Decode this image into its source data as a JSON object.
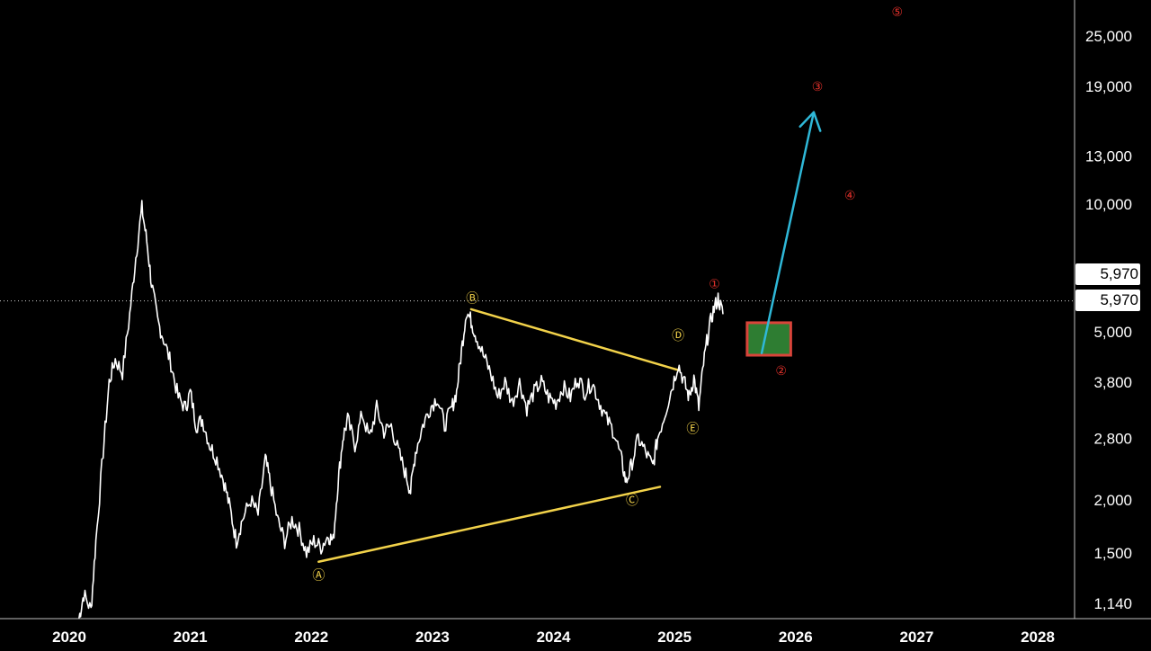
{
  "chart_data": {
    "type": "line",
    "scale": "log",
    "x_ticks": [
      "2020",
      "2021",
      "2022",
      "2023",
      "2024",
      "2025",
      "2026",
      "2027",
      "2028"
    ],
    "y_ticks": [
      "1,140",
      "1,500",
      "2,000",
      "2,800",
      "3,800",
      "5,000",
      "5,970",
      "10,000",
      "13,000",
      "19,000",
      "25,000"
    ],
    "y_tick_values": [
      1140,
      1500,
      2000,
      2800,
      3800,
      5000,
      10000,
      13000,
      19000,
      25000
    ],
    "ylim": [
      1000,
      30000
    ],
    "xlim": [
      2019.85,
      2028.4
    ],
    "current_price_labels": [
      "5,970",
      "5,970"
    ],
    "current_price": 5970,
    "series": [
      {
        "color": "#ffffff",
        "points": [
          [
            2020.08,
            1050
          ],
          [
            2020.12,
            1200
          ],
          [
            2020.18,
            1100
          ],
          [
            2020.22,
            1600
          ],
          [
            2020.28,
            2600
          ],
          [
            2020.33,
            3800
          ],
          [
            2020.38,
            4300
          ],
          [
            2020.44,
            4000
          ],
          [
            2020.5,
            5500
          ],
          [
            2020.55,
            7500
          ],
          [
            2020.6,
            9800
          ],
          [
            2020.64,
            8200
          ],
          [
            2020.68,
            6500
          ],
          [
            2020.73,
            5300
          ],
          [
            2020.78,
            4800
          ],
          [
            2020.84,
            4200
          ],
          [
            2020.9,
            3500
          ],
          [
            2020.96,
            3300
          ],
          [
            2021.0,
            3600
          ],
          [
            2021.05,
            3000
          ],
          [
            2021.1,
            3100
          ],
          [
            2021.16,
            2700
          ],
          [
            2021.22,
            2500
          ],
          [
            2021.28,
            2200
          ],
          [
            2021.33,
            1900
          ],
          [
            2021.38,
            1600
          ],
          [
            2021.43,
            1800
          ],
          [
            2021.5,
            2000
          ],
          [
            2021.56,
            1850
          ],
          [
            2021.62,
            2500
          ],
          [
            2021.66,
            2200
          ],
          [
            2021.72,
            1800
          ],
          [
            2021.78,
            1600
          ],
          [
            2021.84,
            1800
          ],
          [
            2021.9,
            1700
          ],
          [
            2021.96,
            1500
          ],
          [
            2022.02,
            1600
          ],
          [
            2022.08,
            1550
          ],
          [
            2022.14,
            1650
          ],
          [
            2022.18,
            1600
          ],
          [
            2022.22,
            2200
          ],
          [
            2022.26,
            2800
          ],
          [
            2022.3,
            3100
          ],
          [
            2022.36,
            2700
          ],
          [
            2022.42,
            3200
          ],
          [
            2022.48,
            2800
          ],
          [
            2022.54,
            3300
          ],
          [
            2022.6,
            2900
          ],
          [
            2022.66,
            3000
          ],
          [
            2022.72,
            2600
          ],
          [
            2022.78,
            2300
          ],
          [
            2022.82,
            2100
          ],
          [
            2022.86,
            2600
          ],
          [
            2022.92,
            3000
          ],
          [
            2022.98,
            3300
          ],
          [
            2023.04,
            3500
          ],
          [
            2023.1,
            3000
          ],
          [
            2023.16,
            3300
          ],
          [
            2023.2,
            3600
          ],
          [
            2023.24,
            4500
          ],
          [
            2023.28,
            5600
          ],
          [
            2023.32,
            5300
          ],
          [
            2023.36,
            4900
          ],
          [
            2023.42,
            4400
          ],
          [
            2023.48,
            4000
          ],
          [
            2023.54,
            3500
          ],
          [
            2023.6,
            3800
          ],
          [
            2023.66,
            3400
          ],
          [
            2023.72,
            3800
          ],
          [
            2023.78,
            3300
          ],
          [
            2023.84,
            3600
          ],
          [
            2023.9,
            3800
          ],
          [
            2023.96,
            3500
          ],
          [
            2024.02,
            3400
          ],
          [
            2024.08,
            3700
          ],
          [
            2024.14,
            3500
          ],
          [
            2024.2,
            3900
          ],
          [
            2024.26,
            3600
          ],
          [
            2024.32,
            3800
          ],
          [
            2024.38,
            3400
          ],
          [
            2024.44,
            3100
          ],
          [
            2024.5,
            2900
          ],
          [
            2024.56,
            2500
          ],
          [
            2024.6,
            2200
          ],
          [
            2024.64,
            2400
          ],
          [
            2024.7,
            2800
          ],
          [
            2024.76,
            2600
          ],
          [
            2024.82,
            2400
          ],
          [
            2024.86,
            2800
          ],
          [
            2024.92,
            3200
          ],
          [
            2024.98,
            3700
          ],
          [
            2025.03,
            4200
          ],
          [
            2025.08,
            3800
          ],
          [
            2025.12,
            3500
          ],
          [
            2025.16,
            3900
          ],
          [
            2025.2,
            3300
          ],
          [
            2025.24,
            4200
          ],
          [
            2025.28,
            5000
          ],
          [
            2025.32,
            5600
          ],
          [
            2025.36,
            6000
          ],
          [
            2025.4,
            5500
          ]
        ]
      }
    ],
    "trendlines": [
      {
        "color": "#f2d24a",
        "from": [
          2022.06,
          1430
        ],
        "to": [
          2024.88,
          2150
        ]
      },
      {
        "color": "#f2d24a",
        "from": [
          2023.32,
          5650
        ],
        "to": [
          2025.04,
          4050
        ]
      }
    ],
    "projection_arrow": {
      "color": "#2fb8d8",
      "from": [
        2025.72,
        4450
      ],
      "to": [
        2026.15,
        16500
      ]
    },
    "zone": {
      "fill": "#2e7d32",
      "border": "#d9443a",
      "x_range": [
        2025.6,
        2025.96
      ],
      "y_range": [
        4400,
        5250
      ]
    },
    "yellow_labels": [
      {
        "text": "Ⓐ",
        "x": 2022.06,
        "y": 1330
      },
      {
        "text": "Ⓑ",
        "x": 2023.33,
        "y": 6000
      },
      {
        "text": "Ⓒ",
        "x": 2024.65,
        "y": 2000
      },
      {
        "text": "Ⓓ",
        "x": 2025.03,
        "y": 4900
      },
      {
        "text": "Ⓔ",
        "x": 2025.15,
        "y": 2950
      }
    ],
    "red_labels": [
      {
        "text": "①",
        "x": 2025.33,
        "y": 6500
      },
      {
        "text": "②",
        "x": 2025.88,
        "y": 4050
      },
      {
        "text": "③",
        "x": 2026.18,
        "y": 19000
      },
      {
        "text": "④",
        "x": 2026.45,
        "y": 10500
      },
      {
        "text": "⑤",
        "x": 2026.84,
        "y": 28500
      }
    ]
  }
}
